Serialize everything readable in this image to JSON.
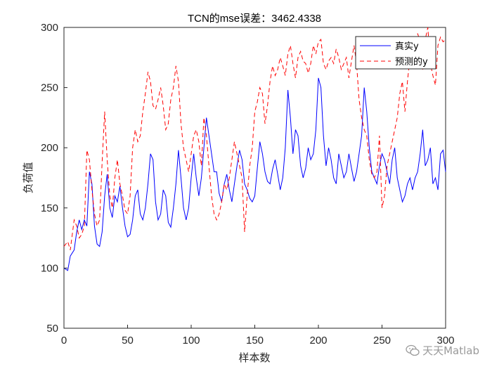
{
  "chart_data": {
    "type": "line",
    "title": "TCN的mse误差：3462.4338",
    "xlabel": "样本数",
    "ylabel": "负荷值",
    "xlim": [
      0,
      300
    ],
    "ylim": [
      50,
      300
    ],
    "xticks": [
      0,
      50,
      100,
      150,
      200,
      250,
      300
    ],
    "yticks": [
      50,
      100,
      150,
      200,
      250,
      300
    ],
    "grid": false,
    "legend_position": "top-right",
    "series": [
      {
        "name": "真实y",
        "color": "#0000ff",
        "style": "solid",
        "x": [
          0,
          3,
          5,
          8,
          10,
          12,
          14,
          16,
          18,
          20,
          22,
          24,
          26,
          28,
          30,
          32,
          34,
          36,
          38,
          40,
          42,
          44,
          46,
          48,
          50,
          52,
          54,
          56,
          58,
          60,
          62,
          64,
          66,
          68,
          70,
          72,
          74,
          76,
          78,
          80,
          82,
          84,
          86,
          88,
          90,
          92,
          94,
          96,
          98,
          100,
          102,
          104,
          106,
          108,
          110,
          112,
          114,
          116,
          118,
          120,
          122,
          124,
          126,
          128,
          130,
          132,
          134,
          136,
          138,
          140,
          142,
          144,
          146,
          148,
          150,
          152,
          154,
          156,
          158,
          160,
          162,
          164,
          166,
          168,
          170,
          172,
          174,
          176,
          178,
          180,
          182,
          184,
          186,
          188,
          190,
          192,
          194,
          196,
          198,
          200,
          202,
          204,
          206,
          208,
          210,
          212,
          214,
          216,
          218,
          220,
          222,
          224,
          226,
          228,
          230,
          232,
          234,
          236,
          238,
          240,
          242,
          244,
          246,
          248,
          250,
          252,
          254,
          256,
          258,
          260,
          262,
          264,
          266,
          268,
          270,
          272,
          274,
          276,
          278,
          280,
          282,
          284,
          286,
          288,
          290,
          292,
          294,
          296,
          298,
          300
        ],
        "values": [
          100,
          98,
          110,
          115,
          130,
          140,
          132,
          140,
          135,
          180,
          170,
          135,
          120,
          118,
          130,
          160,
          178,
          150,
          142,
          160,
          155,
          168,
          150,
          135,
          126,
          128,
          140,
          160,
          165,
          145,
          140,
          150,
          170,
          195,
          190,
          155,
          140,
          145,
          165,
          160,
          138,
          134,
          150,
          170,
          198,
          175,
          150,
          140,
          150,
          175,
          195,
          175,
          160,
          175,
          200,
          225,
          210,
          195,
          180,
          180,
          162,
          155,
          170,
          178,
          165,
          155,
          170,
          185,
          198,
          190,
          170,
          165,
          158,
          155,
          160,
          183,
          205,
          195,
          180,
          172,
          170,
          182,
          190,
          178,
          165,
          175,
          200,
          248,
          225,
          195,
          215,
          210,
          185,
          175,
          183,
          200,
          190,
          195,
          215,
          258,
          250,
          210,
          185,
          200,
          190,
          175,
          170,
          195,
          185,
          175,
          180,
          195,
          183,
          172,
          180,
          195,
          210,
          250,
          230,
          200,
          180,
          175,
          170,
          185,
          195,
          190,
          180,
          170,
          190,
          200,
          175,
          165,
          155,
          160,
          170,
          175,
          165,
          175,
          180,
          195,
          215,
          185,
          190,
          200,
          170,
          175,
          165,
          195,
          198,
          180
        ]
      },
      {
        "name": "预测的y",
        "color": "#ff0000",
        "style": "dashed",
        "x": [
          0,
          3,
          5,
          8,
          10,
          12,
          14,
          16,
          18,
          20,
          22,
          24,
          26,
          28,
          30,
          32,
          34,
          36,
          38,
          40,
          42,
          44,
          46,
          48,
          50,
          52,
          54,
          56,
          58,
          60,
          62,
          64,
          66,
          68,
          70,
          72,
          74,
          76,
          78,
          80,
          82,
          84,
          86,
          88,
          90,
          92,
          94,
          96,
          98,
          100,
          102,
          104,
          106,
          108,
          110,
          112,
          114,
          116,
          118,
          120,
          122,
          124,
          126,
          128,
          130,
          132,
          134,
          136,
          138,
          140,
          142,
          144,
          146,
          148,
          150,
          152,
          154,
          156,
          158,
          160,
          162,
          164,
          166,
          168,
          170,
          172,
          174,
          176,
          178,
          180,
          182,
          184,
          186,
          188,
          190,
          192,
          194,
          196,
          198,
          200,
          202,
          204,
          206,
          208,
          210,
          212,
          214,
          216,
          218,
          220,
          222,
          224,
          226,
          228,
          230,
          232,
          234,
          236,
          238,
          240,
          242,
          244,
          246,
          248,
          250,
          252,
          254,
          256,
          258,
          260,
          262,
          264,
          266,
          268,
          270,
          272,
          274,
          276,
          278,
          280,
          282,
          284,
          286,
          288,
          290,
          292,
          294,
          296,
          298,
          300
        ],
        "values": [
          118,
          122,
          115,
          140,
          135,
          125,
          128,
          135,
          198,
          190,
          165,
          145,
          135,
          140,
          188,
          230,
          190,
          160,
          150,
          175,
          190,
          170,
          160,
          148,
          145,
          160,
          200,
          215,
          205,
          210,
          230,
          245,
          263,
          255,
          235,
          232,
          240,
          250,
          235,
          215,
          220,
          240,
          250,
          268,
          255,
          220,
          200,
          190,
          180,
          195,
          210,
          215,
          205,
          185,
          225,
          210,
          185,
          160,
          145,
          140,
          145,
          155,
          170,
          165,
          175,
          190,
          205,
          195,
          185,
          175,
          130,
          160,
          185,
          200,
          230,
          238,
          250,
          245,
          220,
          235,
          255,
          268,
          260,
          265,
          275,
          268,
          260,
          278,
          285,
          270,
          258,
          275,
          280,
          272,
          270,
          262,
          270,
          285,
          278,
          288,
          290,
          270,
          265,
          272,
          275,
          270,
          282,
          275,
          265,
          270,
          275,
          258,
          272,
          285,
          270,
          240,
          225,
          215,
          210,
          190,
          178,
          175,
          180,
          210,
          150,
          160,
          185,
          195,
          205,
          215,
          225,
          245,
          255,
          230,
          255,
          275,
          270,
          285,
          295,
          288,
          265,
          290,
          300,
          270,
          260,
          252,
          285,
          292,
          288,
          290
        ]
      }
    ]
  },
  "watermark": {
    "text": "天天Matlab",
    "icon": "wechat-icon"
  }
}
